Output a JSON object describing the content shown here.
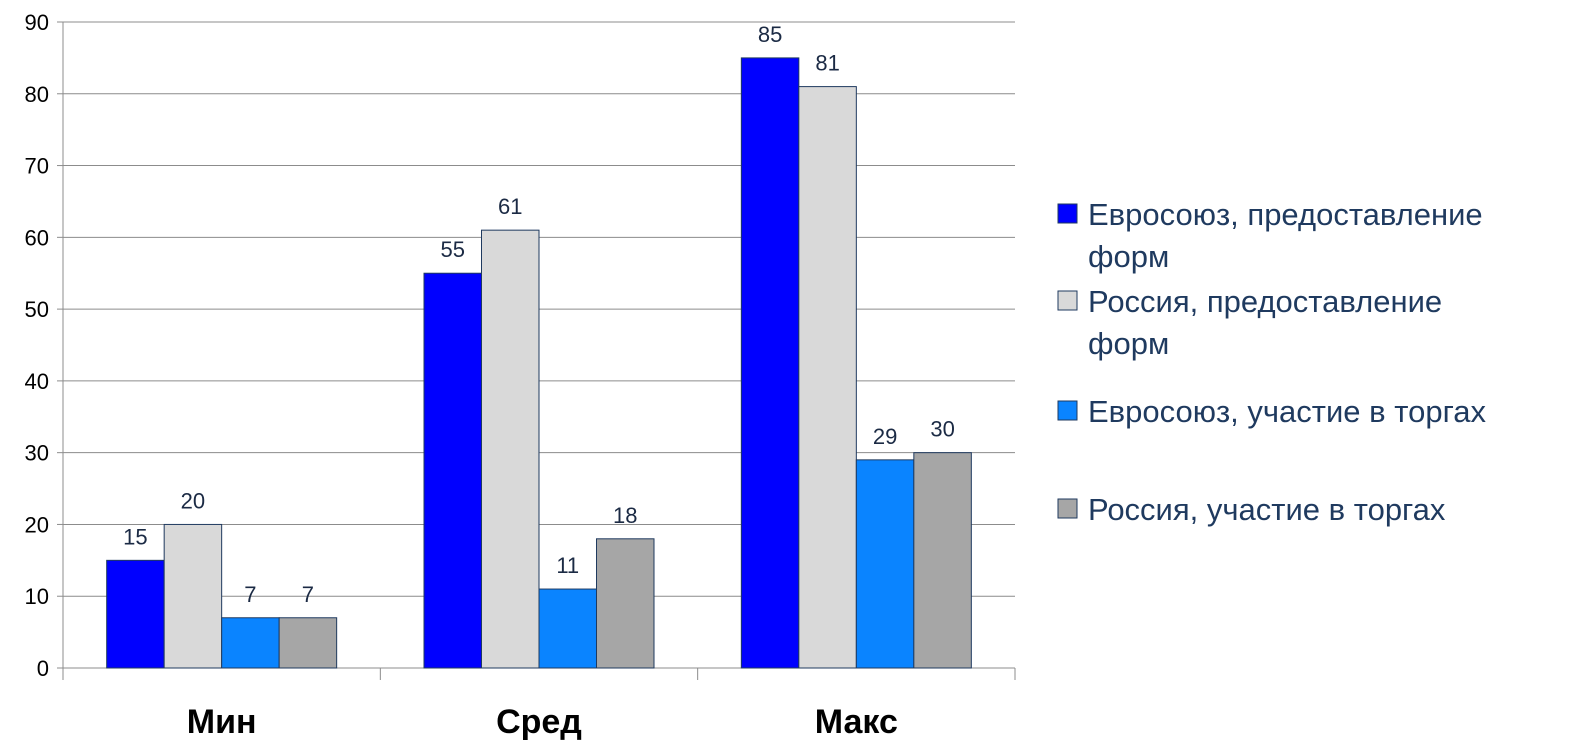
{
  "chart_data": {
    "type": "bar",
    "categories": [
      "Мин",
      "Сред",
      "Макс"
    ],
    "series": [
      {
        "name": "Евросоюз, предоставление форм",
        "legend_lines": [
          "Евросоюз, предоставление",
          "форм"
        ],
        "values": [
          15,
          55,
          85
        ],
        "color": "#0000ff"
      },
      {
        "name": "Россия, предоставление форм",
        "legend_lines": [
          "Россия, предоставление",
          "форм"
        ],
        "values": [
          20,
          61,
          81
        ],
        "color": "#d9d9d9"
      },
      {
        "name": "Евросоюз, участие в торгах",
        "legend_lines": [
          "Евросоюз, участие в торгах"
        ],
        "values": [
          7,
          11,
          29
        ],
        "color": "#0a84ff"
      },
      {
        "name": "Россия, участие в торгах",
        "legend_lines": [
          "Россия, участие в торгах"
        ],
        "values": [
          7,
          18,
          30
        ],
        "color": "#a6a6a6"
      }
    ],
    "ylim": [
      0,
      90
    ],
    "yticks": [
      0,
      10,
      20,
      30,
      40,
      50,
      60,
      70,
      80,
      90
    ],
    "grid": true,
    "legend": "right"
  }
}
